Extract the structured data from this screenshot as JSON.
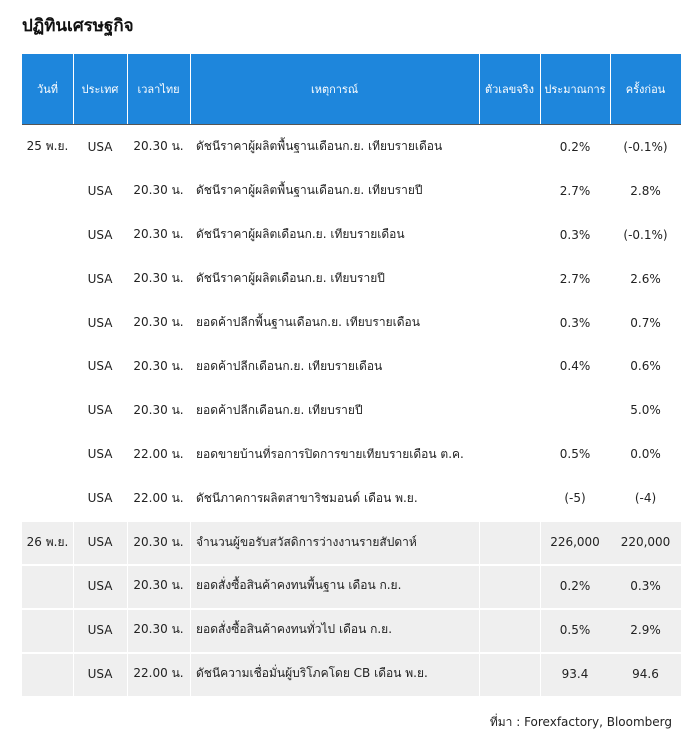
{
  "header": {
    "title": "ปฏิทินเศรษฐกิจ"
  },
  "table": {
    "headers": [
      "วันที่",
      "ประเทศ",
      "เวลาไทย",
      "เหตุการณ์",
      "ตัวเลขจริง",
      "ประมาณการ",
      "ครั้งก่อน"
    ],
    "rows": [
      {
        "date": "25 พ.ย.",
        "country": "USA",
        "time": "20.30 น.",
        "event": "ดัชนีราคาผู้ผลิตพื้นฐานเดือนก.ย. เทียบรายเดือน",
        "forecast": "0.2%",
        "previous": "(-0.1%)"
      },
      {
        "country": "USA",
        "time": "20.30 น.",
        "event": "ดัชนีราคาผู้ผลิตพื้นฐานเดือนก.ย. เทียบรายปี",
        "forecast": "2.7%",
        "previous": "2.8%"
      },
      {
        "country": "USA",
        "time": "20.30 น.",
        "event": "ดัชนีราคาผู้ผลิตเดือนก.ย. เทียบรายเดือน",
        "forecast": "0.3%",
        "previous": "(-0.1%)"
      },
      {
        "country": "USA",
        "time": "20.30 น.",
        "event": "ดัชนีราคาผู้ผลิตเดือนก.ย. เทียบรายปี",
        "forecast": "2.7%",
        "previous": "2.6%"
      },
      {
        "country": "USA",
        "time": "20.30 น.",
        "event": "ยอดค้าปลีกพื้นฐานเดือนก.ย. เทียบรายเดือน",
        "forecast": "0.3%",
        "previous": "0.7%"
      },
      {
        "country": "USA",
        "time": "20.30 น.",
        "event": "ยอดค้าปลีกเดือนก.ย. เทียบรายเดือน",
        "forecast": "0.4%",
        "previous": "0.6%"
      },
      {
        "country": "USA",
        "time": "20.30 น.",
        "event": "ยอดค้าปลีกเดือนก.ย. เทียบรายปี",
        "previous": "5.0%"
      },
      {
        "country": "USA",
        "time": "22.00 น.",
        "event": "ยอดขายบ้านที่รอการปิดการขายเทียบรายเดือน ต.ค.",
        "forecast": "0.5%",
        "previous": "0.0%"
      },
      {
        "country": "USA",
        "time": "22.00 น.",
        "event": "ดัชนีภาคการผลิตสาขาริชมอนด์ เดือน พ.ย.",
        "forecast": "(-5)",
        "previous": "(-4)"
      },
      {
        "date": "26 พ.ย.",
        "country": "USA",
        "time": "20.30 น.",
        "event": "จำนวนผู้ขอรับสวัสดิการว่างงานรายสัปดาห์",
        "forecast": "226,000",
        "previous": "220,000"
      },
      {
        "country": "USA",
        "time": "20.30 น.",
        "event": "ยอดสั่งซื้อสินค้าคงทนพื้นฐาน เดือน ก.ย.",
        "forecast": "0.2%",
        "previous": "0.3%"
      },
      {
        "country": "USA",
        "time": "20.30 น.",
        "event": "ยอดสั่งซื้อสินค้าคงทนทั่วไป เดือน ก.ย.",
        "forecast": "0.5%",
        "previous": "2.9%"
      },
      {
        "country": "USA",
        "time": "22.00 น.",
        "event": "ดัชนีความเชื่อมั่นผู้บริโภคโดย CB เดือน พ.ย.",
        "forecast": "93.4",
        "previous": "94.6"
      }
    ]
  },
  "footer": {
    "source": "ที่มา : Forexfactory, Bloomberg"
  }
}
